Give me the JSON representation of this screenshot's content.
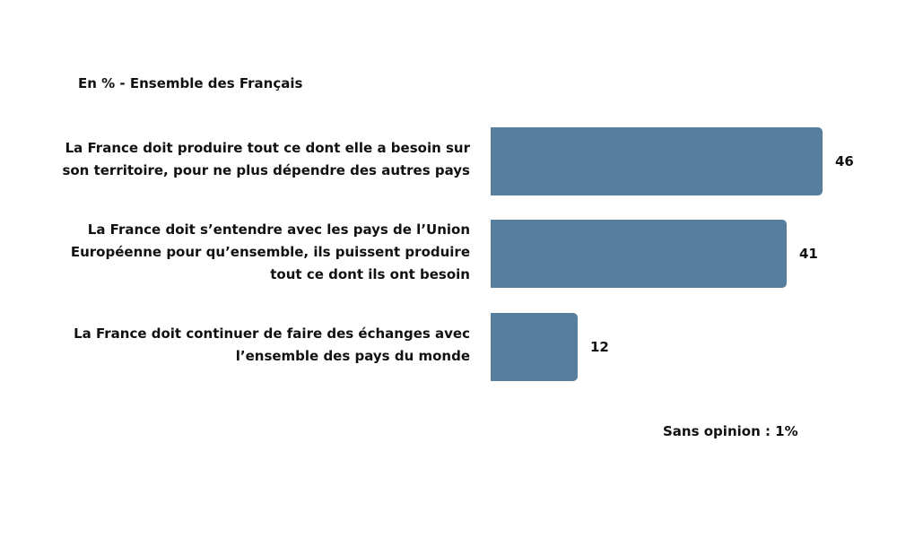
{
  "subtitle": "En % - Ensemble des Français",
  "note": "Sans opinion : 1%",
  "colors": {
    "bar": "#587e9d",
    "text": "#111111",
    "background": "#ffffff"
  },
  "chart_data": {
    "type": "bar",
    "orientation": "horizontal",
    "title": "",
    "subtitle": "En % - Ensemble des Français",
    "xlabel": "",
    "ylabel": "",
    "categories": [
      "La France doit produire tout ce dont elle a besoin sur\nson territoire, pour ne plus dépendre des autres pays",
      "La France doit s’entendre avec les pays de l’Union\nEuropéenne pour qu’ensemble, ils puissent produire\ntout ce dont ils ont besoin",
      "La France doit continuer de faire des échanges avec\nl’ensemble des pays du monde"
    ],
    "values": [
      46,
      41,
      12
    ],
    "value_labels": [
      "46",
      "41",
      "12"
    ],
    "xlim": [
      0,
      46
    ],
    "grid": false,
    "legend": "none",
    "annotation": "Sans opinion : 1%"
  }
}
